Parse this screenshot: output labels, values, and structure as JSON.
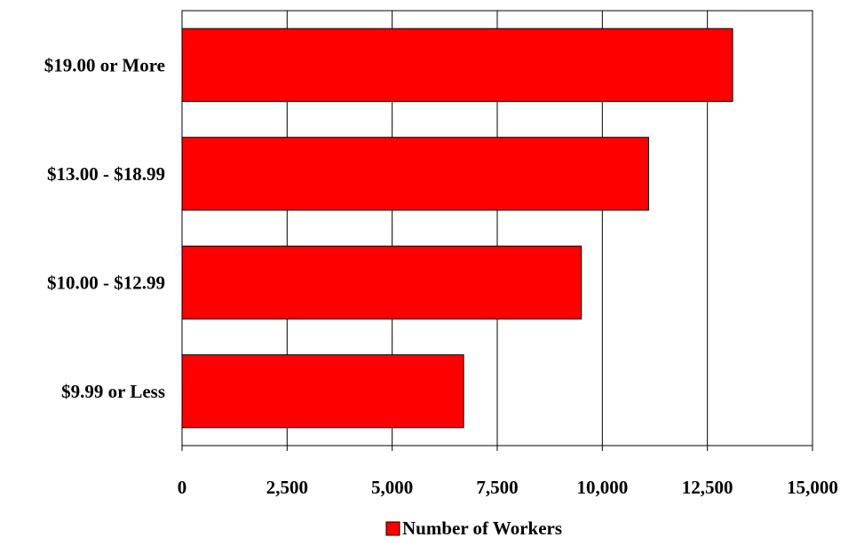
{
  "chart_data": {
    "type": "bar",
    "orientation": "horizontal",
    "categories": [
      "$9.99 or Less",
      "$10.00 - $12.99",
      "$13.00 - $18.99",
      "$19.00 or More"
    ],
    "series": [
      {
        "name": "Number of Workers",
        "values": [
          6700,
          9500,
          11100,
          13100
        ],
        "color": "#ff0000"
      }
    ],
    "xlim": [
      0,
      15000
    ],
    "xticks": [
      0,
      2500,
      5000,
      7500,
      10000,
      12500,
      15000
    ],
    "xtick_labels": [
      "0",
      "2,500",
      "5,000",
      "7,500",
      "10,000",
      "12,500",
      "15,000"
    ],
    "grid": "vertical",
    "legend": "bottom-center",
    "title": "",
    "xlabel": "",
    "ylabel": ""
  },
  "legend": {
    "label": "Number of Workers"
  }
}
